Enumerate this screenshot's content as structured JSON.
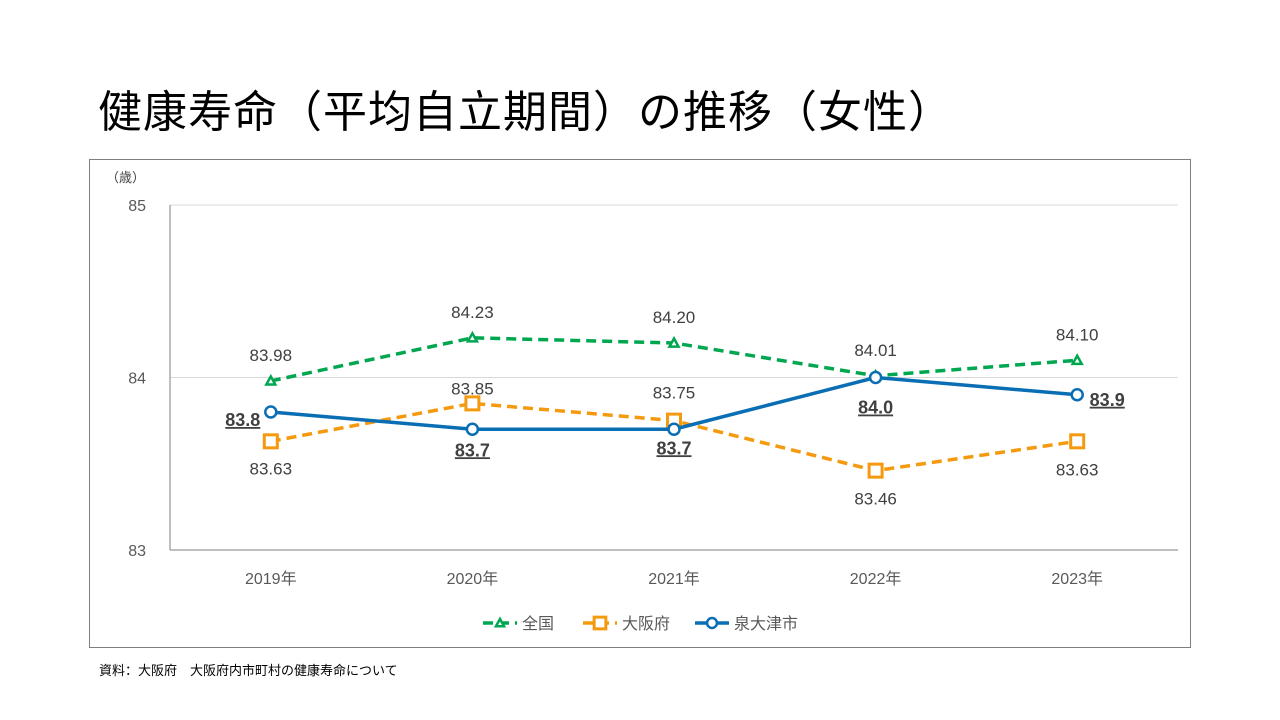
{
  "title": "健康寿命（平均自立期間）の推移（女性）",
  "source": "資料：大阪府　大阪府内市町村の健康寿命について",
  "chart_data": {
    "type": "line",
    "title": "健康寿命（平均自立期間）の推移（女性）",
    "xlabel": "",
    "ylabel": "（歳）",
    "ylim": [
      83,
      85
    ],
    "yticks": [
      83,
      84,
      85
    ],
    "ytick_labels": [
      "83",
      "84",
      "85"
    ],
    "categories": [
      "2019年",
      "2020年",
      "2021年",
      "2022年",
      "2023年"
    ],
    "grid": "horizontal",
    "legend_position": "bottom",
    "series": [
      {
        "name": "全国",
        "color": "#00A650",
        "line_style": "dashed",
        "marker": "triangle",
        "values": [
          83.98,
          84.23,
          84.2,
          84.01,
          84.1
        ],
        "labels": [
          "83.98",
          "84.23",
          "84.20",
          "84.01",
          "84.10"
        ],
        "label_style": "normal"
      },
      {
        "name": "大阪府",
        "color": "#F59A0F",
        "line_style": "dashed",
        "marker": "square",
        "values": [
          83.63,
          83.85,
          83.75,
          83.46,
          83.63
        ],
        "labels": [
          "83.63",
          "83.85",
          "83.75",
          "83.46",
          "83.63"
        ],
        "label_style": "normal"
      },
      {
        "name": "泉大津市",
        "color": "#0A6EB4",
        "line_style": "solid",
        "marker": "circle",
        "values": [
          83.8,
          83.7,
          83.7,
          84.0,
          83.9
        ],
        "labels": [
          "83.8",
          "83.7",
          "83.7",
          "84.0",
          "83.9"
        ],
        "label_style": "bold-underline"
      }
    ]
  }
}
